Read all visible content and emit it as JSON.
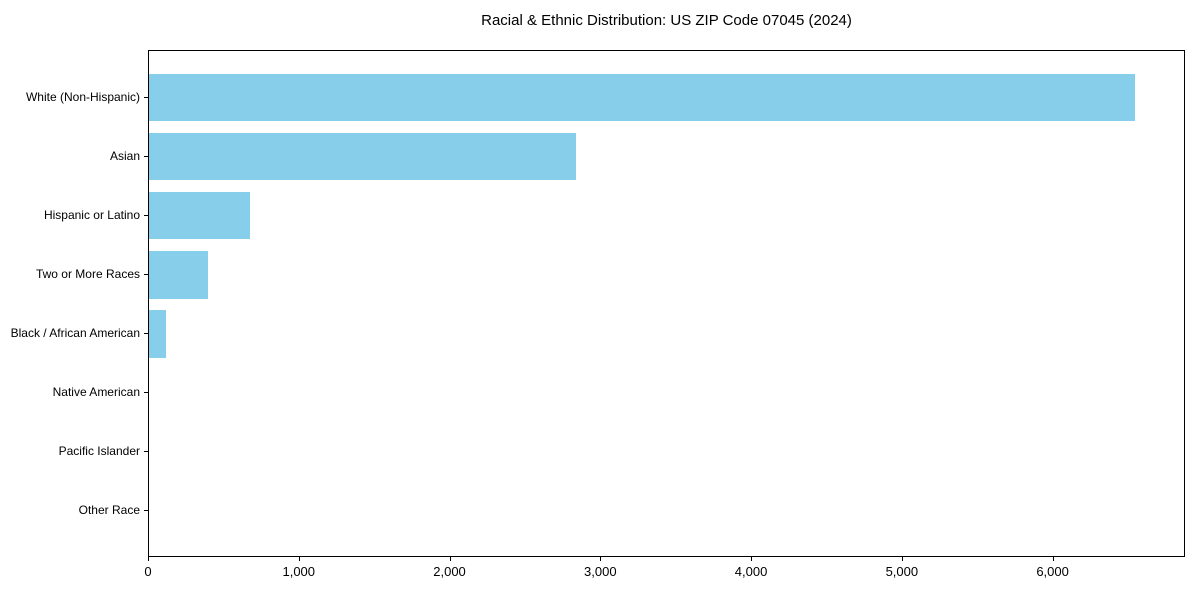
{
  "chart_data": {
    "type": "bar",
    "orientation": "horizontal",
    "title": "Racial & Ethnic Distribution: US ZIP Code 07045 (2024)",
    "categories": [
      "White (Non-Hispanic)",
      "Asian",
      "Hispanic or Latino",
      "Two or More Races",
      "Black / African American",
      "Native American",
      "Pacific Islander",
      "Other Race"
    ],
    "values": [
      6550,
      2840,
      670,
      395,
      115,
      0,
      0,
      0
    ],
    "xlabel": "",
    "ylabel": "",
    "xlim": [
      0,
      6878
    ],
    "xticks": [
      0,
      1000,
      2000,
      3000,
      4000,
      5000,
      6000
    ],
    "xtick_labels": [
      "0",
      "1,000",
      "2,000",
      "3,000",
      "4,000",
      "5,000",
      "6,000"
    ],
    "bar_color": "#87CEEB",
    "axis_color": "#000000",
    "text_color": "#000000",
    "background_color": "#ffffff",
    "grid": false,
    "legend": false
  }
}
